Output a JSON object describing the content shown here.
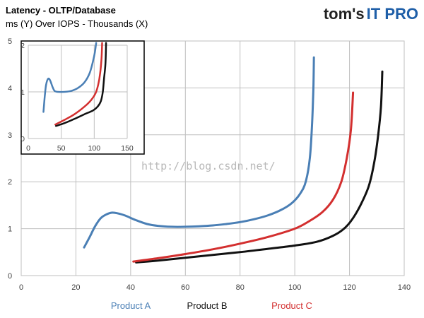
{
  "chart_data": {
    "type": "line",
    "title": "Latency - OLTP/Database",
    "subtitle": "ms (Y) Over IOPS - Thousands (X)",
    "brand": {
      "part1": "tom's",
      "part2": "IT PRO"
    },
    "watermark": "http://blog.csdn.net/",
    "xlim": [
      0,
      140
    ],
    "ylim": [
      0,
      5
    ],
    "xticks": [
      "0",
      "20",
      "40",
      "60",
      "80",
      "100",
      "120",
      "140"
    ],
    "yticks": [
      "0",
      "1",
      "2",
      "3",
      "4",
      "5"
    ],
    "grid": true,
    "legend_position": "bottom",
    "series": [
      {
        "name": "Product A",
        "color": "#4a7fb5",
        "points": [
          [
            23,
            0.6
          ],
          [
            25,
            0.82
          ],
          [
            27,
            1.05
          ],
          [
            29,
            1.22
          ],
          [
            31,
            1.3
          ],
          [
            33,
            1.34
          ],
          [
            35,
            1.33
          ],
          [
            38,
            1.28
          ],
          [
            42,
            1.18
          ],
          [
            46,
            1.1
          ],
          [
            50,
            1.06
          ],
          [
            55,
            1.04
          ],
          [
            60,
            1.04
          ],
          [
            65,
            1.05
          ],
          [
            70,
            1.07
          ],
          [
            75,
            1.1
          ],
          [
            80,
            1.14
          ],
          [
            85,
            1.2
          ],
          [
            90,
            1.28
          ],
          [
            95,
            1.4
          ],
          [
            99,
            1.55
          ],
          [
            102,
            1.75
          ],
          [
            104,
            2.0
          ],
          [
            105.5,
            2.5
          ],
          [
            106.3,
            3.2
          ],
          [
            106.8,
            4.0
          ],
          [
            107,
            4.65
          ]
        ]
      },
      {
        "name": "Product B",
        "color": "#111111",
        "points": [
          [
            42,
            0.28
          ],
          [
            50,
            0.32
          ],
          [
            60,
            0.38
          ],
          [
            70,
            0.44
          ],
          [
            80,
            0.5
          ],
          [
            90,
            0.57
          ],
          [
            100,
            0.64
          ],
          [
            108,
            0.72
          ],
          [
            114,
            0.85
          ],
          [
            118,
            1.0
          ],
          [
            121,
            1.2
          ],
          [
            124,
            1.5
          ],
          [
            127,
            1.9
          ],
          [
            129,
            2.4
          ],
          [
            130.5,
            3.0
          ],
          [
            131.5,
            3.6
          ],
          [
            132,
            4.35
          ]
        ]
      },
      {
        "name": "Product C",
        "color": "#d32f2f",
        "points": [
          [
            41,
            0.3
          ],
          [
            50,
            0.37
          ],
          [
            60,
            0.46
          ],
          [
            70,
            0.56
          ],
          [
            80,
            0.68
          ],
          [
            90,
            0.82
          ],
          [
            100,
            1.0
          ],
          [
            105,
            1.15
          ],
          [
            110,
            1.35
          ],
          [
            114,
            1.62
          ],
          [
            117,
            2.0
          ],
          [
            119,
            2.5
          ],
          [
            120.5,
            3.1
          ],
          [
            121.3,
            3.9
          ]
        ]
      }
    ],
    "inset": {
      "xlim": [
        0,
        150
      ],
      "ylim": [
        0,
        2
      ],
      "xticks": [
        "0",
        "50",
        "100",
        "150"
      ],
      "yticks": [
        "0",
        "1",
        "2"
      ],
      "series": [
        {
          "name": "Product A",
          "color": "#4a7fb5",
          "points": [
            [
              23,
              0.57
            ],
            [
              25,
              0.9
            ],
            [
              27,
              1.15
            ],
            [
              30,
              1.28
            ],
            [
              33,
              1.25
            ],
            [
              37,
              1.1
            ],
            [
              40,
              1.02
            ],
            [
              45,
              1.0
            ],
            [
              55,
              1.0
            ],
            [
              65,
              1.02
            ],
            [
              75,
              1.08
            ],
            [
              85,
              1.2
            ],
            [
              93,
              1.4
            ],
            [
              98,
              1.65
            ],
            [
              101,
              1.85
            ],
            [
              103,
              2.05
            ]
          ]
        },
        {
          "name": "Product B",
          "color": "#111111",
          "points": [
            [
              42,
              0.27
            ],
            [
              55,
              0.33
            ],
            [
              70,
              0.42
            ],
            [
              85,
              0.52
            ],
            [
              98,
              0.6
            ],
            [
              105,
              0.68
            ],
            [
              110,
              0.8
            ],
            [
              113,
              1.0
            ],
            [
              115,
              1.3
            ],
            [
              117,
              1.6
            ],
            [
              118,
              2.05
            ]
          ]
        },
        {
          "name": "Product C",
          "color": "#d32f2f",
          "points": [
            [
              41,
              0.3
            ],
            [
              55,
              0.4
            ],
            [
              70,
              0.52
            ],
            [
              85,
              0.68
            ],
            [
              95,
              0.82
            ],
            [
              102,
              0.97
            ],
            [
              106,
              1.15
            ],
            [
              109,
              1.4
            ],
            [
              111,
              1.7
            ],
            [
              112,
              2.05
            ]
          ]
        }
      ]
    }
  }
}
